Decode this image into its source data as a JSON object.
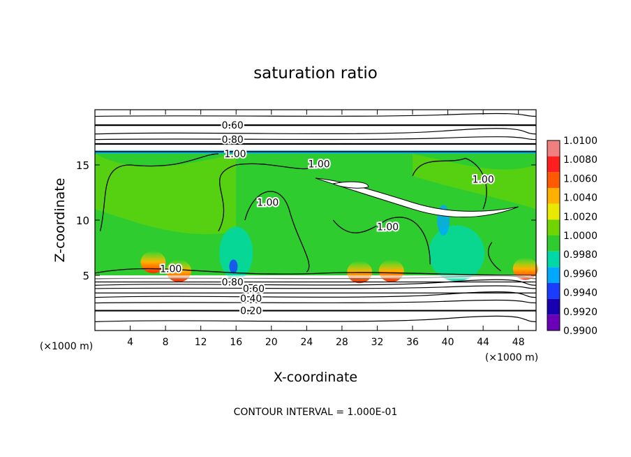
{
  "chart_data": {
    "type": "heatmap",
    "title": "saturation ratio",
    "xlabel": "X-coordinate",
    "ylabel": "Z-coordinate",
    "x_unit": "(×1000 m)",
    "y_unit": "(×1000 m)",
    "footer": "CONTOUR INTERVAL = 1.000E-01",
    "xlim": [
      0,
      50
    ],
    "ylim": [
      0,
      20
    ],
    "x_ticks": [
      4,
      8,
      12,
      16,
      20,
      24,
      28,
      32,
      36,
      40,
      44,
      48
    ],
    "y_ticks": [
      5,
      10,
      15
    ],
    "colorbar": {
      "levels": [
        "1.0100",
        "1.0080",
        "1.0060",
        "1.0040",
        "1.0020",
        "1.0000",
        "0.9980",
        "0.9960",
        "0.9940",
        "0.9920",
        "0.9900"
      ],
      "colors": [
        "#f08080",
        "#ff1f1f",
        "#ff5a00",
        "#ffb000",
        "#e8e800",
        "#6fd400",
        "#2fcc2f",
        "#00d8a8",
        "#00a8ff",
        "#1a3cff",
        "#1800b0",
        "#6a00b8"
      ]
    },
    "contours": [
      {
        "label": "0.20",
        "z": 1.8
      },
      {
        "label": "0.40",
        "z": 3.0
      },
      {
        "label": "0.60",
        "z": 3.8
      },
      {
        "label": "0.80",
        "z": 4.4
      },
      {
        "label": "1.00",
        "z": 5.4
      },
      {
        "label": "1.00",
        "z": 16.2
      },
      {
        "label": "0.80",
        "z": 16.8
      },
      {
        "label": "0.60",
        "z": 18.6
      }
    ],
    "contour_labels": [
      {
        "text": "0.60",
        "x": 15.6,
        "z": 18.6
      },
      {
        "text": "0.80",
        "x": 15.6,
        "z": 17.3
      },
      {
        "text": "1.00",
        "x": 15.9,
        "z": 16.0
      },
      {
        "text": "1.00",
        "x": 25.4,
        "z": 15.1
      },
      {
        "text": "1.00",
        "x": 44.0,
        "z": 13.7
      },
      {
        "text": "1.00",
        "x": 19.6,
        "z": 11.6
      },
      {
        "text": "1.00",
        "x": 33.2,
        "z": 9.4
      },
      {
        "text": "1.00",
        "x": 8.6,
        "z": 5.6
      },
      {
        "text": "0.80",
        "x": 15.6,
        "z": 4.4
      },
      {
        "text": "0.60",
        "x": 18.0,
        "z": 3.8
      },
      {
        "text": "0.40",
        "x": 17.7,
        "z": 2.9
      },
      {
        "text": "0.20",
        "x": 17.7,
        "z": 1.8
      }
    ]
  }
}
